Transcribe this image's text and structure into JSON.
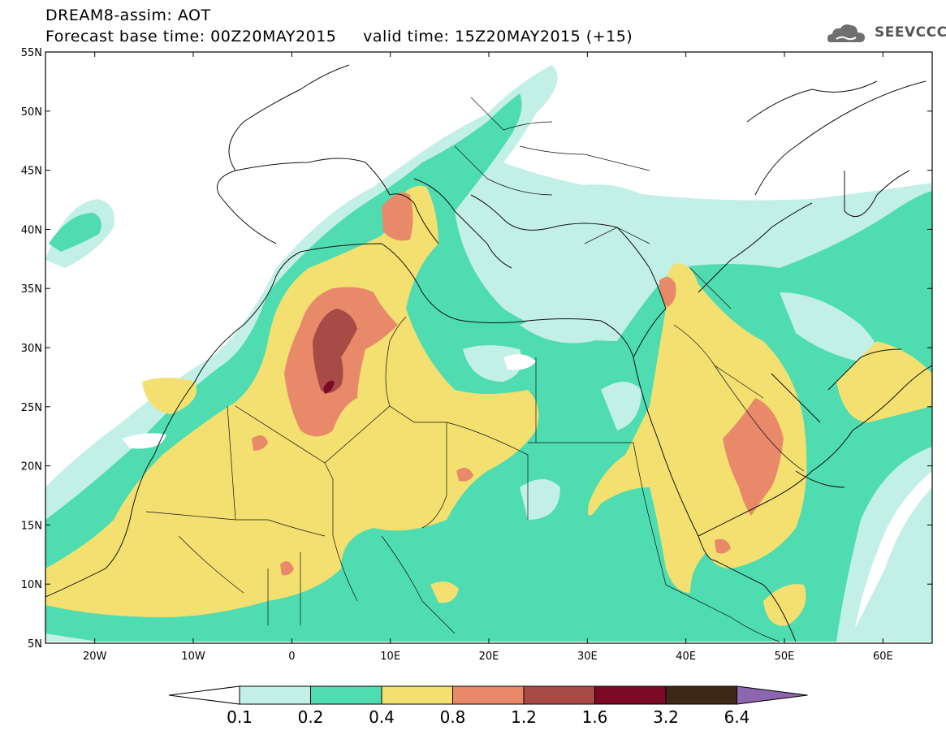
{
  "header": {
    "line1": "DREAM8-assim: AOT",
    "line2": "Forecast base time: 00Z20MAY2015     valid time: 15Z20MAY2015 (+15)"
  },
  "logo": {
    "text": "SEEVCCC",
    "icon": "cloud-icon"
  },
  "map": {
    "lon_range": [
      -25,
      65
    ],
    "lat_range": [
      5,
      55
    ],
    "lat_ticks": [
      "5N",
      "10N",
      "15N",
      "20N",
      "25N",
      "30N",
      "35N",
      "40N",
      "45N",
      "50N",
      "55N"
    ],
    "lon_ticks": [
      "20W",
      "10W",
      "0",
      "10E",
      "20E",
      "30E",
      "40E",
      "50E",
      "60E"
    ]
  },
  "colorbar": {
    "labels": [
      "0.1",
      "0.2",
      "0.4",
      "0.8",
      "1.2",
      "1.6",
      "3.2",
      "6.4"
    ],
    "colors": [
      "#c2efe6",
      "#4fdcb0",
      "#f3e070",
      "#e8896a",
      "#a84a45",
      "#7a0a25",
      "#3e2716",
      "#8e66b0"
    ]
  }
}
